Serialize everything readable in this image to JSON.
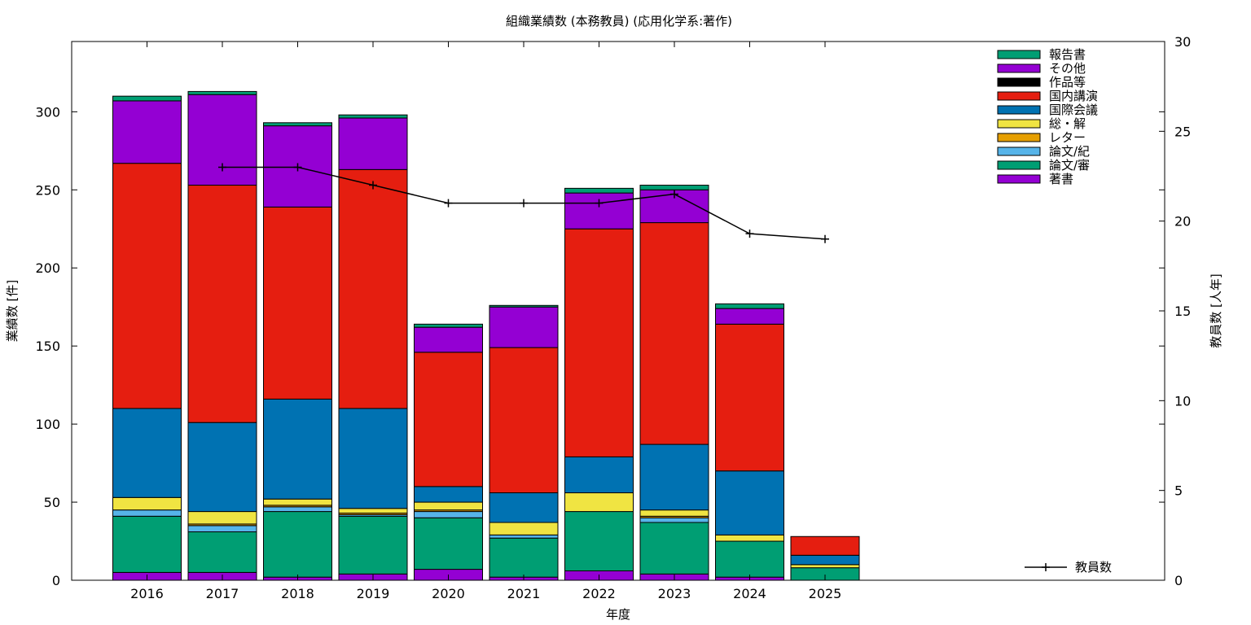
{
  "chart_data": {
    "type": "bar",
    "stacked": true,
    "title": "組織業績数 (本務教員) (応用化学系:著作)",
    "xlabel": "年度",
    "ylabel": "業績数 [件]",
    "y2label": "教員数 [人年]",
    "ylim": [
      0,
      345
    ],
    "y2lim": [
      0,
      30
    ],
    "yticks": [
      "0",
      "50",
      "100",
      "150",
      "200",
      "250",
      "300"
    ],
    "y2ticks": [
      "0",
      "5",
      "10",
      "15",
      "20",
      "25",
      "30"
    ],
    "categories": [
      "2016",
      "2017",
      "2018",
      "2019",
      "2020",
      "2021",
      "2022",
      "2023",
      "2024",
      "2025"
    ],
    "grid": false,
    "legend_position": "top-right",
    "series": [
      {
        "name": "著書",
        "color": "#9400d3",
        "values": [
          5,
          5,
          2,
          4,
          7,
          2,
          6,
          4,
          2,
          0
        ]
      },
      {
        "name": "論文/審",
        "color": "#009e73",
        "values": [
          36,
          26,
          42,
          37,
          33,
          25,
          38,
          33,
          23,
          8
        ]
      },
      {
        "name": "論文/紀",
        "color": "#56b4e9",
        "values": [
          4,
          4,
          3,
          1,
          4,
          2,
          0,
          3,
          0,
          0
        ]
      },
      {
        "name": "レター",
        "color": "#e69f00",
        "values": [
          0,
          1,
          1,
          1,
          1,
          0,
          0,
          1,
          0,
          0
        ]
      },
      {
        "name": "総・解",
        "color": "#f0e442",
        "values": [
          8,
          8,
          4,
          3,
          5,
          8,
          12,
          4,
          4,
          2
        ]
      },
      {
        "name": "国際会議",
        "color": "#0072b2",
        "values": [
          57,
          57,
          64,
          64,
          10,
          19,
          23,
          42,
          41,
          6
        ]
      },
      {
        "name": "国内講演",
        "color": "#e51e10",
        "values": [
          157,
          152,
          123,
          153,
          86,
          93,
          146,
          142,
          94,
          12
        ]
      },
      {
        "name": "作品等",
        "color": "#000000",
        "values": [
          0,
          0,
          0,
          0,
          0,
          0,
          0,
          0,
          0,
          0
        ]
      },
      {
        "name": "その他",
        "color": "#9400d3",
        "values": [
          40,
          58,
          52,
          33,
          16,
          26,
          23,
          21,
          10,
          0
        ]
      },
      {
        "name": "報告書",
        "color": "#009e73",
        "values": [
          3,
          2,
          2,
          2,
          2,
          1,
          3,
          3,
          3,
          0
        ]
      }
    ],
    "line_series": {
      "name": "教員数",
      "color": "#000000",
      "axis": "right",
      "x": [
        "2017",
        "2018",
        "2019",
        "2020",
        "2021",
        "2022",
        "2023",
        "2024",
        "2025"
      ],
      "values": [
        23,
        23,
        22,
        21,
        21,
        21,
        21.5,
        19.3,
        19
      ]
    }
  }
}
